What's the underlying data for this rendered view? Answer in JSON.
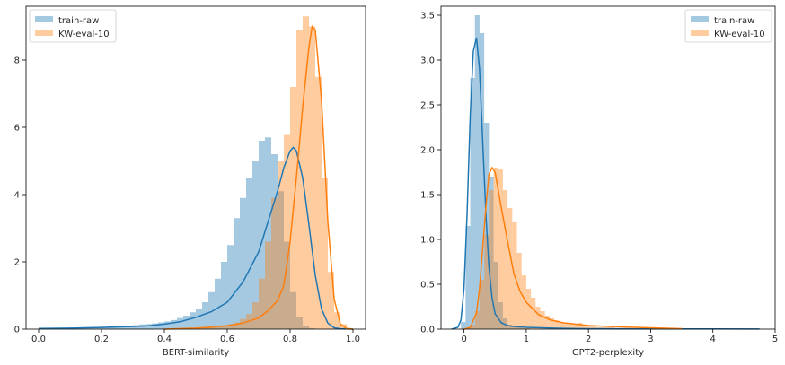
{
  "chart_data": [
    {
      "type": "histogram+kde",
      "xlabel": "BERT-similarity",
      "ylabel": "",
      "xlim": [
        -0.04,
        1.04
      ],
      "ylim": [
        0,
        9.6
      ],
      "xticks": [
        0.0,
        0.2,
        0.4,
        0.6,
        0.8,
        1.0
      ],
      "xtick_labels": [
        "0.0",
        "0.2",
        "0.4",
        "0.6",
        "0.8",
        "1.0"
      ],
      "yticks": [
        0,
        2,
        4,
        6,
        8
      ],
      "ytick_labels": [
        "0",
        "2",
        "4",
        "6",
        "8"
      ],
      "legend_position": "upper-left",
      "series": [
        {
          "name": "train-raw",
          "color": "#1f77b4",
          "hist": {
            "bin_start": 0.0,
            "bin_width": 0.02,
            "heights": [
              0.02,
              0.02,
              0.03,
              0.03,
              0.04,
              0.04,
              0.05,
              0.05,
              0.06,
              0.06,
              0.07,
              0.08,
              0.09,
              0.1,
              0.11,
              0.12,
              0.14,
              0.15,
              0.17,
              0.2,
              0.23,
              0.27,
              0.33,
              0.4,
              0.5,
              0.6,
              0.8,
              1.1,
              1.5,
              2.0,
              2.5,
              3.3,
              3.9,
              4.5,
              5.0,
              5.6,
              5.7,
              5.2,
              4.1,
              2.6,
              1.1,
              0.35,
              0.1,
              0.03,
              0.01,
              0,
              0,
              0,
              0,
              0
            ]
          },
          "kde": {
            "x": [
              0.0,
              0.1,
              0.2,
              0.3,
              0.35,
              0.4,
              0.45,
              0.5,
              0.55,
              0.6,
              0.65,
              0.7,
              0.73,
              0.76,
              0.78,
              0.8,
              0.81,
              0.82,
              0.84,
              0.86,
              0.88,
              0.9,
              0.92,
              0.94,
              0.96,
              1.0
            ],
            "y": [
              0.02,
              0.03,
              0.05,
              0.08,
              0.1,
              0.15,
              0.22,
              0.35,
              0.52,
              0.8,
              1.4,
              2.3,
              3.2,
              4.1,
              4.8,
              5.3,
              5.4,
              5.3,
              4.5,
              3.1,
              1.6,
              0.6,
              0.18,
              0.04,
              0.01,
              0.0
            ]
          }
        },
        {
          "name": "KW-eval-10",
          "color": "#ff7f0e",
          "hist": {
            "bin_start": 0.0,
            "bin_width": 0.02,
            "heights": [
              0,
              0,
              0,
              0,
              0,
              0,
              0,
              0,
              0,
              0,
              0,
              0,
              0,
              0,
              0,
              0,
              0,
              0,
              0,
              0,
              0.01,
              0.01,
              0.02,
              0.03,
              0.04,
              0.05,
              0.06,
              0.08,
              0.1,
              0.12,
              0.15,
              0.2,
              0.3,
              0.45,
              0.8,
              1.5,
              2.6,
              3.9,
              5.0,
              5.8,
              7.2,
              8.9,
              9.3,
              9.0,
              7.5,
              4.5,
              1.7,
              0.5,
              0.15,
              0.03
            ]
          },
          "kde": {
            "x": [
              0.4,
              0.5,
              0.55,
              0.6,
              0.65,
              0.7,
              0.73,
              0.76,
              0.78,
              0.8,
              0.82,
              0.84,
              0.86,
              0.87,
              0.88,
              0.9,
              0.91,
              0.92,
              0.94,
              0.96,
              0.98,
              1.0
            ],
            "y": [
              0.0,
              0.03,
              0.06,
              0.1,
              0.18,
              0.33,
              0.55,
              0.85,
              1.3,
              2.6,
              4.5,
              6.6,
              8.4,
              9.0,
              8.9,
              6.8,
              5.0,
              3.2,
              0.9,
              0.15,
              0.02,
              0.0
            ]
          }
        }
      ]
    },
    {
      "type": "histogram+kde",
      "xlabel": "GPT2-perplexity",
      "ylabel": "",
      "xlim": [
        -0.37,
        5.0
      ],
      "ylim": [
        0,
        3.6
      ],
      "xticks": [
        0,
        1,
        2,
        3,
        4,
        5
      ],
      "xtick_labels": [
        "0",
        "1",
        "2",
        "3",
        "4",
        "5"
      ],
      "yticks": [
        0.0,
        0.5,
        1.0,
        1.5,
        2.0,
        2.5,
        3.0,
        3.5
      ],
      "ytick_labels": [
        "0.0",
        "0.5",
        "1.0",
        "1.5",
        "2.0",
        "2.5",
        "3.0",
        "3.5"
      ],
      "legend_position": "upper-right",
      "series": [
        {
          "name": "train-raw",
          "color": "#1f77b4",
          "hist": {
            "bin_start": -0.2,
            "bin_width": 0.075,
            "heights": [
              0,
              0,
              0.08,
              1.15,
              2.8,
              3.5,
              3.3,
              2.3,
              1.7,
              0.75,
              0.3,
              0.12,
              0.05,
              0.03,
              0.02,
              0.01,
              0.01,
              0.005,
              0,
              0,
              0,
              0,
              0,
              0,
              0,
              0,
              0,
              0,
              0,
              0
            ]
          },
          "kde": {
            "x": [
              -0.2,
              -0.1,
              -0.05,
              0.0,
              0.05,
              0.1,
              0.15,
              0.2,
              0.25,
              0.3,
              0.35,
              0.4,
              0.45,
              0.5,
              0.6,
              0.7,
              0.8,
              1.0,
              1.5,
              2.0,
              3.0,
              4.0,
              4.75
            ],
            "y": [
              0.0,
              0.02,
              0.1,
              0.45,
              1.3,
              2.4,
              3.1,
              3.25,
              2.9,
              2.1,
              1.3,
              0.7,
              0.35,
              0.17,
              0.07,
              0.04,
              0.03,
              0.02,
              0.01,
              0.005,
              0.003,
              0.002,
              0.001
            ]
          }
        },
        {
          "name": "KW-eval-10",
          "color": "#ff7f0e",
          "hist": {
            "bin_start": -0.05,
            "bin_width": 0.075,
            "heights": [
              0,
              0.01,
              0.05,
              0.2,
              0.55,
              1.05,
              1.55,
              1.8,
              1.78,
              1.55,
              1.35,
              1.2,
              0.85,
              0.6,
              0.45,
              0.35,
              0.25,
              0.2,
              0.15,
              0.12,
              0.1,
              0.08,
              0.07,
              0.06,
              0.05,
              0.07,
              0.04,
              0.03,
              0.03,
              0.02,
              0.02,
              0.02,
              0.02,
              0.01,
              0.01,
              0.01,
              0.01,
              0.01,
              0.01,
              0.01,
              0.01,
              0.01,
              0.01,
              0.01,
              0.01,
              0.01,
              0.005,
              0.005,
              0.005
            ]
          },
          "kde": {
            "x": [
              0.0,
              0.1,
              0.2,
              0.25,
              0.3,
              0.35,
              0.4,
              0.45,
              0.5,
              0.55,
              0.6,
              0.7,
              0.8,
              0.9,
              1.0,
              1.2,
              1.4,
              1.6,
              2.0,
              2.5,
              3.0,
              3.5
            ],
            "y": [
              0.0,
              0.02,
              0.18,
              0.45,
              0.9,
              1.35,
              1.72,
              1.8,
              1.75,
              1.55,
              1.35,
              0.98,
              0.62,
              0.42,
              0.3,
              0.16,
              0.1,
              0.07,
              0.04,
              0.025,
              0.015,
              0.005
            ]
          }
        }
      ]
    }
  ]
}
